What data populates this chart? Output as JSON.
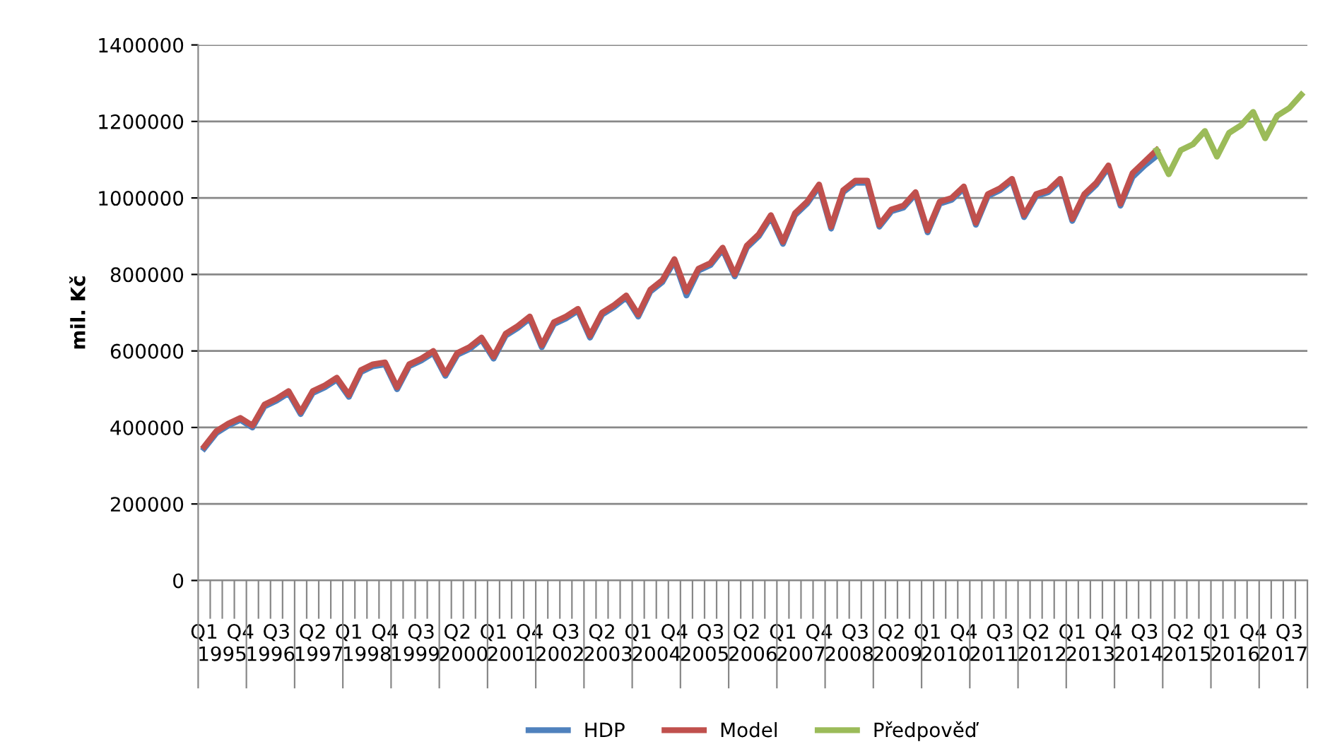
{
  "chart_data": {
    "type": "line",
    "ylabel": "mil. Kč",
    "categories": [
      "Q1",
      null,
      null,
      "Q4",
      null,
      null,
      "Q3",
      null,
      null,
      "Q2",
      null,
      null,
      "Q1",
      null,
      null,
      "Q4",
      null,
      null,
      "Q3",
      null,
      null,
      "Q2",
      null,
      null,
      "Q1",
      null,
      null,
      "Q4",
      null,
      null,
      "Q3",
      null,
      null,
      "Q2",
      null,
      null,
      "Q1",
      null,
      null,
      "Q4",
      null,
      null,
      "Q3",
      null,
      null,
      "Q2",
      null,
      null,
      "Q1",
      null,
      null,
      "Q4",
      null,
      null,
      "Q3",
      null,
      null,
      "Q2",
      null,
      null,
      "Q1",
      null,
      null,
      "Q4",
      null,
      null,
      "Q3",
      null,
      null,
      "Q2",
      null,
      null,
      "Q1",
      null,
      null,
      "Q4",
      null,
      null,
      "Q3",
      null,
      null,
      "Q2",
      null,
      null,
      "Q1",
      null,
      null,
      "Q4",
      null,
      null,
      "Q3",
      null
    ],
    "series": [
      {
        "name": "HDP",
        "color": "#4f81bd",
        "values": [
          345000,
          385000,
          405000,
          420000,
          400000,
          455000,
          470000,
          490000,
          435000,
          490000,
          505000,
          525000,
          480000,
          545000,
          560000,
          565000,
          500000,
          560000,
          575000,
          595000,
          535000,
          590000,
          605000,
          630000,
          580000,
          640000,
          660000,
          685000,
          610000,
          670000,
          685000,
          705000,
          635000,
          695000,
          715000,
          740000,
          690000,
          755000,
          780000,
          835000,
          745000,
          810000,
          825000,
          865000,
          795000,
          870000,
          900000,
          950000,
          880000,
          955000,
          985000,
          1030000,
          920000,
          1015000,
          1040000,
          1040000,
          925000,
          965000,
          975000,
          1010000,
          910000,
          985000,
          995000,
          1025000,
          930000,
          1005000,
          1020000,
          1045000,
          950000,
          1005000,
          1015000,
          1045000,
          940000,
          1005000,
          1035000,
          1080000,
          980000,
          1055000,
          1085000,
          1110000,
          null,
          null,
          null,
          null,
          null,
          null,
          null,
          null,
          null,
          null,
          null,
          null
        ]
      },
      {
        "name": "Model",
        "color": "#c0504d",
        "values": [
          350000,
          390000,
          410000,
          425000,
          405000,
          460000,
          475000,
          495000,
          440000,
          495000,
          510000,
          530000,
          485000,
          550000,
          565000,
          570000,
          505000,
          565000,
          580000,
          600000,
          540000,
          595000,
          610000,
          635000,
          585000,
          645000,
          665000,
          690000,
          615000,
          675000,
          690000,
          710000,
          640000,
          700000,
          720000,
          745000,
          695000,
          760000,
          785000,
          840000,
          755000,
          815000,
          830000,
          870000,
          800000,
          875000,
          905000,
          955000,
          885000,
          960000,
          990000,
          1035000,
          925000,
          1020000,
          1045000,
          1045000,
          930000,
          970000,
          980000,
          1015000,
          915000,
          990000,
          1000000,
          1030000,
          935000,
          1010000,
          1025000,
          1050000,
          955000,
          1010000,
          1020000,
          1050000,
          945000,
          1010000,
          1040000,
          1085000,
          985000,
          1065000,
          1095000,
          1125000,
          null,
          null,
          null,
          null,
          null,
          null,
          null,
          null,
          null,
          null,
          null,
          null
        ]
      },
      {
        "name": "Předpověď",
        "color": "#9bbb59",
        "values": [
          null,
          null,
          null,
          null,
          null,
          null,
          null,
          null,
          null,
          null,
          null,
          null,
          null,
          null,
          null,
          null,
          null,
          null,
          null,
          null,
          null,
          null,
          null,
          null,
          null,
          null,
          null,
          null,
          null,
          null,
          null,
          null,
          null,
          null,
          null,
          null,
          null,
          null,
          null,
          null,
          null,
          null,
          null,
          null,
          null,
          null,
          null,
          null,
          null,
          null,
          null,
          null,
          null,
          null,
          null,
          null,
          null,
          null,
          null,
          null,
          null,
          null,
          null,
          null,
          null,
          null,
          null,
          null,
          null,
          null,
          null,
          null,
          null,
          null,
          null,
          null,
          null,
          null,
          null,
          1125000,
          1062000,
          1125000,
          1140000,
          1175000,
          1108000,
          1170000,
          1190000,
          1225000,
          1156000,
          1215000,
          1235000,
          1270000
        ]
      }
    ],
    "ylim": [
      0,
      1400000
    ],
    "yticks": [
      0,
      200000,
      400000,
      600000,
      800000,
      1000000,
      1200000,
      1400000
    ],
    "grid": "y",
    "legend": "bottom",
    "marker": "none",
    "line_style": "solid",
    "annotations": [
      "1995",
      "1996",
      "1997",
      "1998",
      "1999",
      "2000",
      "2001",
      "2002",
      "2003",
      "2004",
      "2005",
      "2006",
      "2007",
      "2008",
      "2009",
      "2010",
      "2011",
      "2012",
      "2013",
      "2014",
      "2015",
      "2016",
      "2017"
    ]
  }
}
